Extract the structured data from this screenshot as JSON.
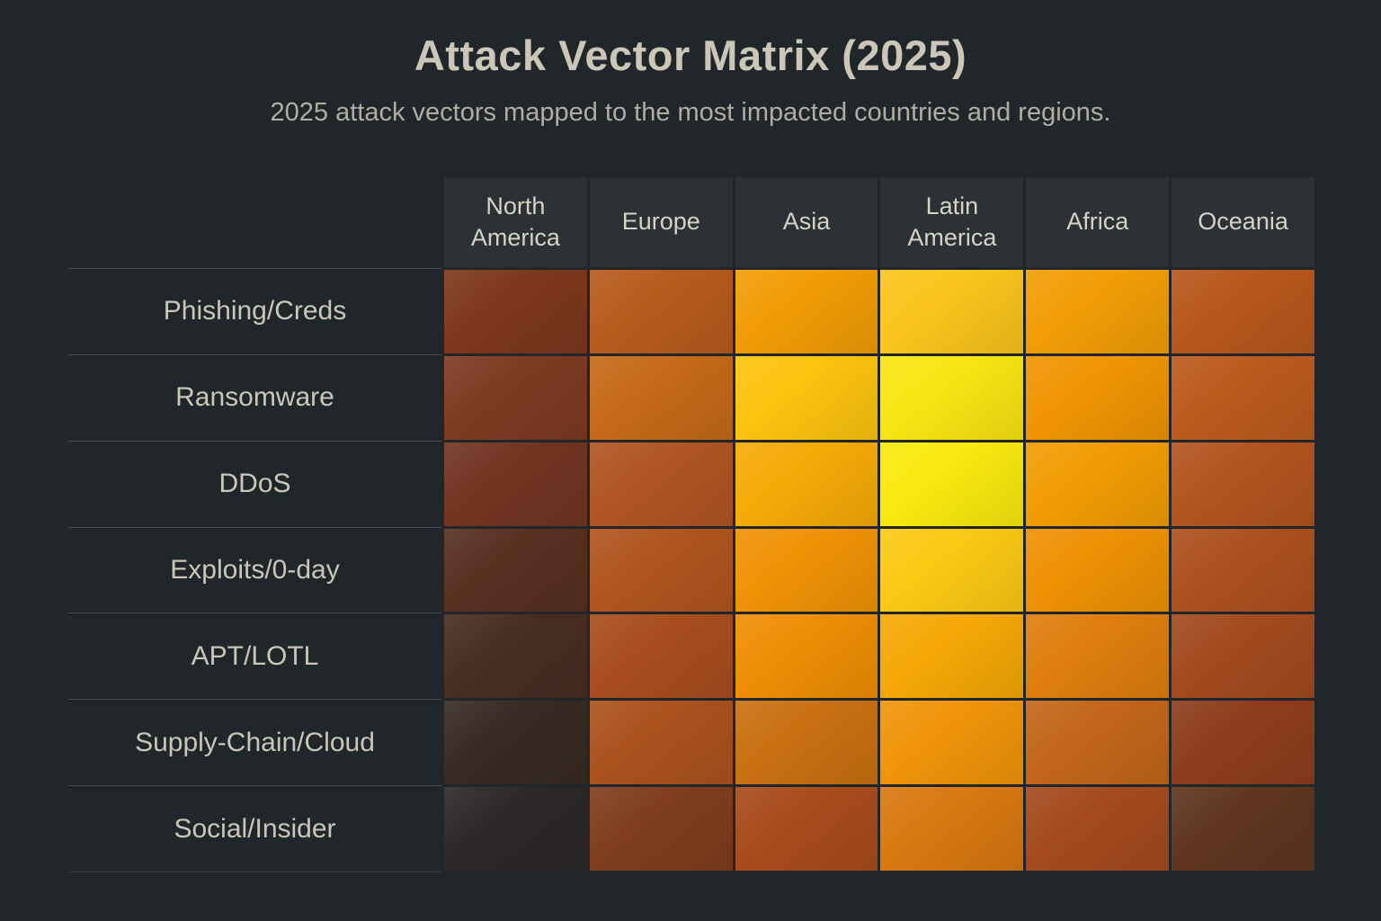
{
  "chart_data": {
    "type": "heatmap",
    "title": "Attack Vector Matrix (2025)",
    "subtitle": "2025 attack vectors mapped to the most impacted countries and regions.",
    "columns": [
      "North America",
      "Europe",
      "Asia",
      "Latin America",
      "Africa",
      "Oceania"
    ],
    "rows": [
      "Phishing/Creds",
      "Ransomware",
      "DDoS",
      "Exploits/0-day",
      "APT/LOTL",
      "Supply-Chain/Cloud",
      "Social/Insider"
    ],
    "values": [
      [
        35,
        55,
        80,
        88,
        80,
        55
      ],
      [
        33,
        62,
        88,
        97,
        77,
        58
      ],
      [
        30,
        52,
        83,
        98,
        79,
        52
      ],
      [
        22,
        52,
        76,
        88,
        75,
        50
      ],
      [
        16,
        47,
        74,
        81,
        68,
        45
      ],
      [
        8,
        48,
        60,
        76,
        56,
        35
      ],
      [
        4,
        30,
        45,
        63,
        44,
        18
      ]
    ],
    "cell_colors": [
      [
        "#7d371e",
        "#b75b1e",
        "#f19c06",
        "#fac41c",
        "#f19d07",
        "#b7571d"
      ],
      [
        "#7d3a22",
        "#c56a18",
        "#fcc30f",
        "#f9e513",
        "#f09404",
        "#bb5a1e"
      ],
      [
        "#713521",
        "#b05523",
        "#f6aa08",
        "#f9e90f",
        "#f19c04",
        "#b2541f"
      ],
      [
        "#573020",
        "#b0551f",
        "#f09206",
        "#fbc914",
        "#ee9105",
        "#ad501f"
      ],
      [
        "#482d22",
        "#a84d1f",
        "#ee8e05",
        "#f5a806",
        "#de7e0e",
        "#a24a1f"
      ],
      [
        "#372a23",
        "#ab521e",
        "#c97012",
        "#f0940a",
        "#c2661a",
        "#8d3d1d"
      ],
      [
        "#2b2827",
        "#7f3d1e",
        "#a84b1c",
        "#d87811",
        "#a44a1e",
        "#5f351f"
      ]
    ],
    "value_scale": [
      0,
      100
    ],
    "colormap": "dark brown (low) to bright yellow (high)",
    "legend_position": "none",
    "grid_on": true
  },
  "palette": {
    "page_background": "#20262a",
    "header_cell_background": "#2b3134",
    "title_text": "#cbc6b8",
    "subtitle_text": "#b0ada2",
    "header_text": "#d6d2c6",
    "row_label_text": "#cbc6ba",
    "grid_line": "#20262a",
    "min_cell_color": "#2b2827",
    "max_cell_color": "#f9e90f"
  }
}
